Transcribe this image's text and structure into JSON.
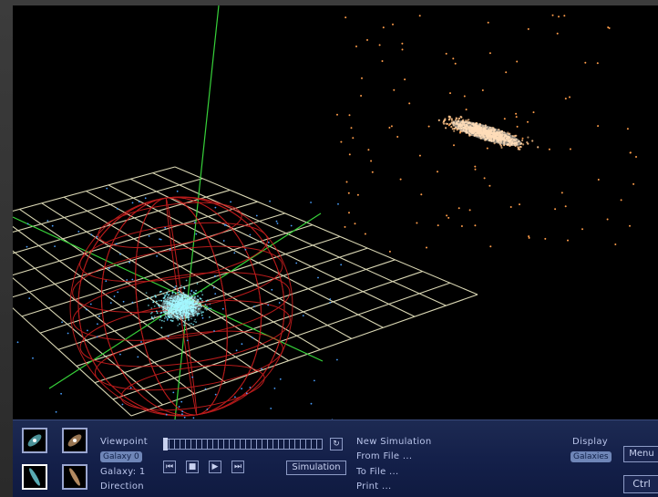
{
  "viewpoint": {
    "label": "Viewpoint",
    "mode": "Galaxy 0",
    "galaxy": "Galaxy: 1",
    "direction": "Direction"
  },
  "simulation": {
    "button_label": "Simulation",
    "menu": [
      "New Simulation",
      "From File ...",
      "To File ...",
      "Print ..."
    ]
  },
  "display": {
    "label": "Display",
    "mode": "Galaxies"
  },
  "right_buttons": {
    "menu": "Menu",
    "ctrl": "Ctrl"
  },
  "transport": {
    "first": "⏮",
    "stop": "■",
    "play": "▶",
    "last": "⏭",
    "refresh": "↻"
  },
  "colors": {
    "galaxy_blue": "#7ff3ff",
    "galaxy_orange": "#ffc48a",
    "grid": "#f2efc8",
    "sphere": "#d82020",
    "axes": "#37d23a",
    "panel": "#182450"
  },
  "icons": [
    "blue-galaxy-icon",
    "orange-galaxy-icon",
    "blue-galaxy-edge-icon",
    "orange-galaxy-edge-icon"
  ]
}
